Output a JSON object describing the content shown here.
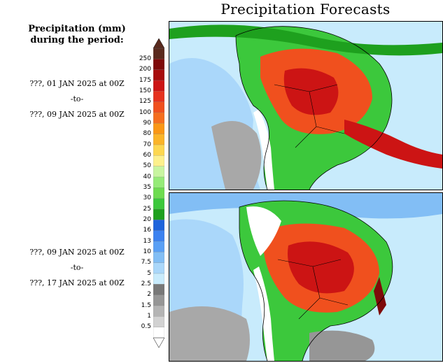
{
  "title": "Precipitation Forecasts",
  "subtitle": {
    "line1": "Precipitation (mm)",
    "line2": "during the period:"
  },
  "periods": [
    {
      "start": "???, 01 JAN 2025 at 00Z",
      "separator": "-to-",
      "end": "???, 09 JAN 2025 at 00Z"
    },
    {
      "start": "???, 09 JAN 2025 at 00Z",
      "separator": "-to-",
      "end": "???, 17 JAN 2025 at 00Z"
    }
  ],
  "colorbar": {
    "labels": [
      "250",
      "200",
      "175",
      "150",
      "125",
      "100",
      "90",
      "80",
      "70",
      "60",
      "50",
      "40",
      "35",
      "30",
      "25",
      "20",
      "16",
      "13",
      "10",
      "7.5",
      "5",
      "2.5",
      "2",
      "1.5",
      "1",
      "0.5"
    ],
    "colors": [
      "#5a2a1e",
      "#7e0a0a",
      "#a80c0c",
      "#cc1414",
      "#e6321e",
      "#f0501e",
      "#f56e1e",
      "#fa9614",
      "#fbb428",
      "#fdd750",
      "#fdf08c",
      "#c8f5a0",
      "#96eb78",
      "#6edc50",
      "#3cc83c",
      "#1ea01e",
      "#1e64dc",
      "#3c82f0",
      "#5aa0f5",
      "#82bef5",
      "#aad7fa",
      "#c8ebfc",
      "#787878",
      "#969696",
      "#b4b4b4",
      "#d2d2d2",
      "#ffffff"
    ]
  },
  "map_features": {
    "ocean_color": "#c8ebfc",
    "land_color": "#ffffff",
    "border_color": "#000000"
  }
}
